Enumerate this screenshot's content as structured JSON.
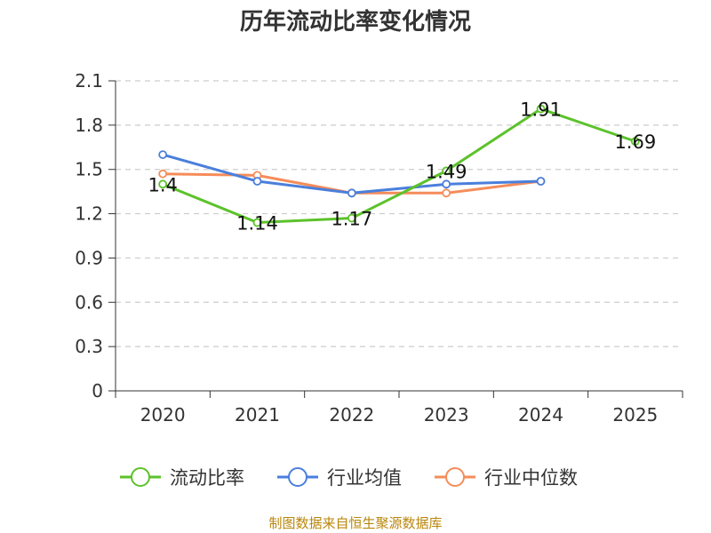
{
  "chart_data": {
    "type": "line",
    "title": "历年流动比率变化情况",
    "categories": [
      "2020",
      "2021",
      "2022",
      "2023",
      "2024",
      "2025"
    ],
    "ylim": [
      0,
      2.1
    ],
    "yticks": [
      "0",
      "0.3",
      "0.6",
      "0.9",
      "1.2",
      "1.5",
      "1.8",
      "2.1"
    ],
    "grid": true,
    "legend_position": "bottom",
    "series": [
      {
        "name": "流动比率",
        "color": "#5cc22b",
        "values": [
          1.4,
          1.14,
          1.17,
          1.49,
          1.91,
          1.69
        ],
        "labels": [
          "1.4",
          "1.14",
          "1.17",
          "1.49",
          "1.91",
          "1.69"
        ]
      },
      {
        "name": "行业均值",
        "color": "#4a7fdc",
        "values": [
          1.6,
          1.42,
          1.34,
          1.4,
          1.42,
          null
        ]
      },
      {
        "name": "行业中位数",
        "color": "#f58c5a",
        "values": [
          1.47,
          1.46,
          1.34,
          1.34,
          1.42,
          null
        ]
      }
    ]
  },
  "source": "制图数据来自恒生聚源数据库"
}
